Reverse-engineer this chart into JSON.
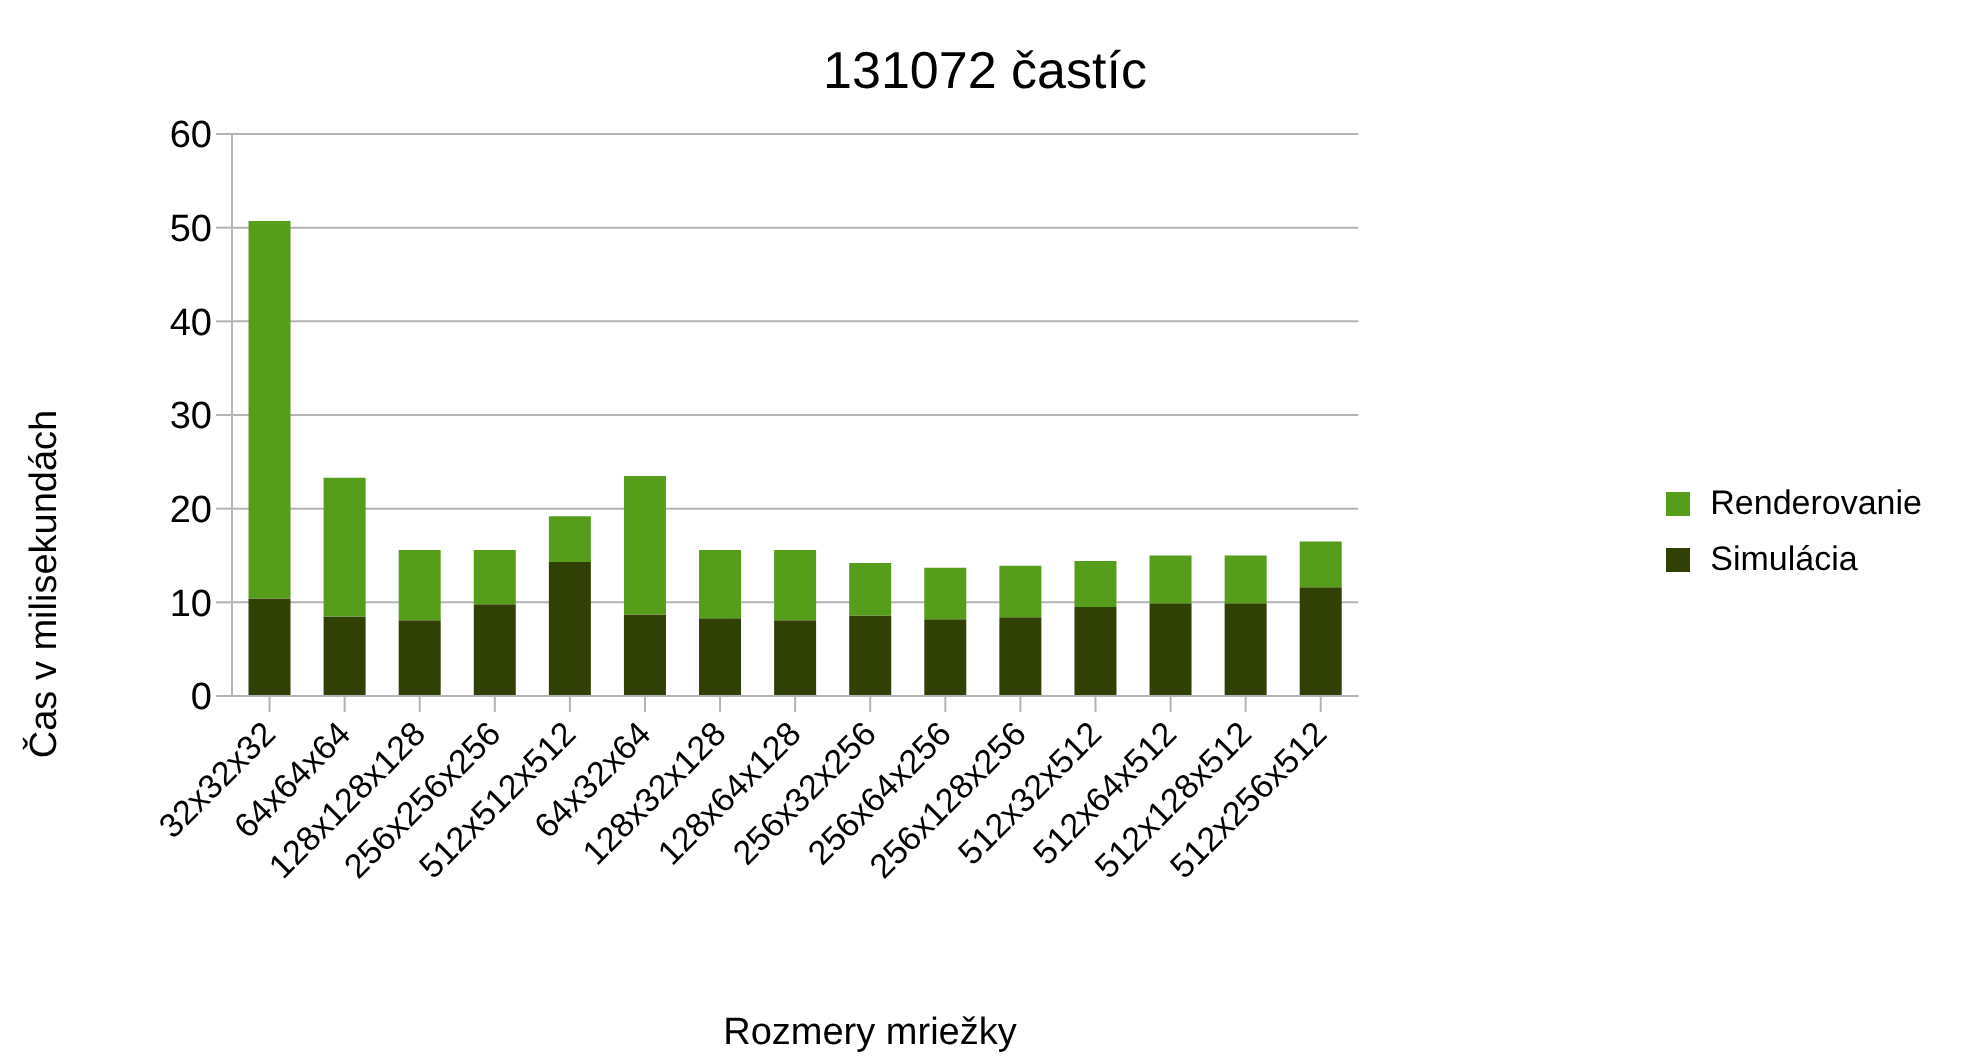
{
  "chart_data": {
    "type": "bar",
    "title": "131072 častíc",
    "xlabel": "Rozmery mriežky",
    "ylabel": "Čas v milisekundách",
    "categories": [
      "32x32x32",
      "64x64x64",
      "128x128x128",
      "256x256x256",
      "512x512x512",
      "64x32x64",
      "128x32x128",
      "128x64x128",
      "256x32x256",
      "256x64x256",
      "256x128x256",
      "512x32x512",
      "512x64x512",
      "512x128x512",
      "512x256x512"
    ],
    "stacked": true,
    "series": [
      {
        "name": "Simulácia",
        "color": "#314004",
        "values": [
          10.4,
          8.5,
          8.1,
          9.8,
          14.3,
          8.7,
          8.3,
          8.1,
          8.6,
          8.2,
          8.4,
          9.5,
          9.9,
          9.9,
          11.6
        ]
      },
      {
        "name": "Renderovanie",
        "color": "#579d1c",
        "values": [
          40.3,
          14.8,
          7.5,
          5.8,
          4.9,
          14.8,
          7.3,
          7.5,
          5.6,
          5.5,
          5.5,
          4.9,
          5.1,
          5.1,
          4.9
        ]
      }
    ],
    "ylim": [
      0,
      60
    ],
    "yticks": [
      0,
      10,
      20,
      30,
      40,
      50,
      60
    ],
    "grid": "y",
    "legend": "right"
  }
}
